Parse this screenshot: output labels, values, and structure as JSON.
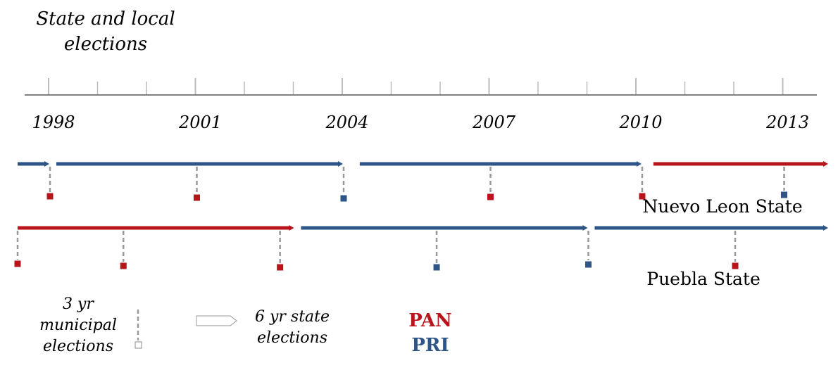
{
  "title": [
    "State and local",
    "elections"
  ],
  "axis": {
    "years": [
      "1998",
      "2001",
      "2004",
      "2007",
      "2010",
      "2013"
    ]
  },
  "rows": [
    {
      "label": "Nuevo Leon State",
      "terms": [
        {
          "party": "PRI",
          "from": 1997,
          "to": 1998
        },
        {
          "party": "PRI",
          "from": 1998.1,
          "to": 2004
        },
        {
          "party": "PRI",
          "from": 2004.3,
          "to": 2010.1
        },
        {
          "party": "PAN",
          "from": 2010.3,
          "to": 2014
        }
      ],
      "municipal": [
        {
          "year": 1998,
          "party": "PAN"
        },
        {
          "year": 2001,
          "party": "PAN"
        },
        {
          "year": 2004,
          "party": "PRI"
        },
        {
          "year": 2007,
          "party": "PAN"
        },
        {
          "year": 2010.1,
          "party": "PAN"
        },
        {
          "year": 2013,
          "party": "PRI"
        }
      ]
    },
    {
      "label": "Puebla State",
      "terms": [
        {
          "party": "PAN",
          "from": 1997,
          "to": 2003
        },
        {
          "party": "PRI",
          "from": 2003.1,
          "to": 2009
        },
        {
          "party": "PRI",
          "from": 2009.1,
          "to": 2014
        }
      ],
      "municipal": [
        {
          "year": 1997,
          "party": "PAN"
        },
        {
          "year": 1999.5,
          "party": "PAN"
        },
        {
          "year": 2002.7,
          "party": "PAN"
        },
        {
          "year": 2005.9,
          "party": "PRI"
        },
        {
          "year": 2009,
          "party": "PRI"
        },
        {
          "year": 2012,
          "party": "PAN"
        }
      ]
    }
  ],
  "legend": {
    "municipal": [
      "3 yr",
      "municipal",
      "elections"
    ],
    "state": [
      "6 yr state",
      "elections"
    ],
    "parties": [
      {
        "name": "PAN",
        "color": "#b8141c"
      },
      {
        "name": "PRI",
        "color": "#2f5587"
      }
    ]
  },
  "colors": {
    "PAN": "#b8141c",
    "PRI": "#2f5587",
    "axis": "#000000",
    "tick": "#bbbbbb",
    "dash": "#999999"
  }
}
